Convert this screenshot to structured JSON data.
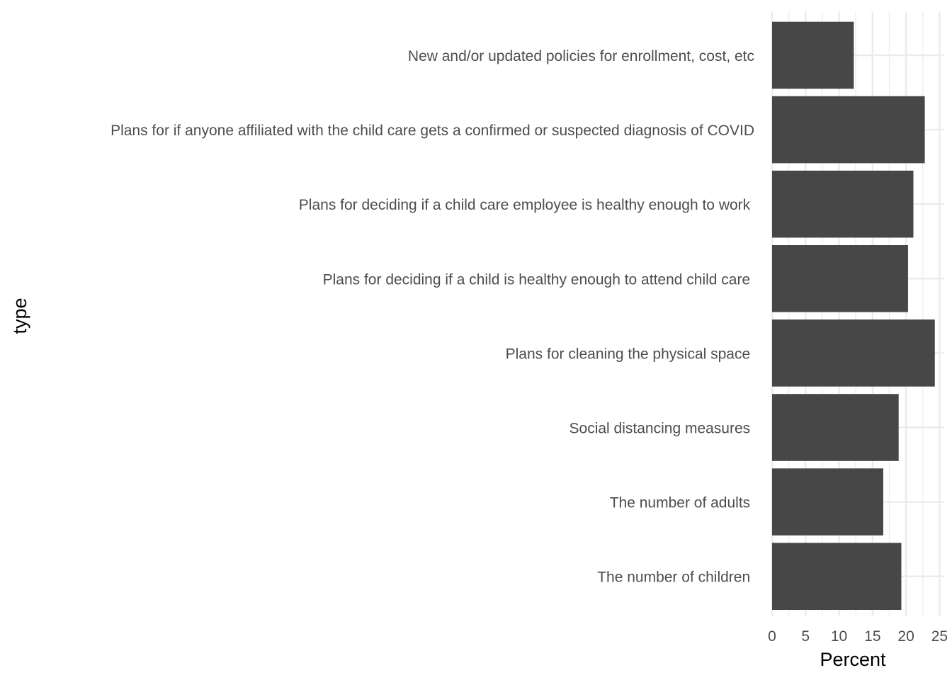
{
  "chart_data": {
    "type": "bar",
    "orientation": "horizontal",
    "categories": [
      "New and/or updated policies for enrollment, cost, etc",
      "Plans for if anyone affiliated with the child care gets a confirmed or suspected diagnosis of COVID",
      "Plans for deciding if a child care employee is healthy enough to work ",
      "Plans for deciding if a child is healthy enough to attend child care ",
      "Plans for cleaning the physical space ",
      "Social distancing measures ",
      "The number of adults ",
      "The number of children "
    ],
    "values": [
      12.2,
      22.8,
      21.1,
      20.3,
      24.3,
      18.9,
      16.6,
      19.3
    ],
    "xlabel": "Percent",
    "ylabel": "type",
    "xlim": [
      0,
      25.7
    ],
    "xticks": [
      "0",
      "5",
      "10",
      "15",
      "20",
      "25"
    ],
    "grid": true,
    "legend": "none",
    "bar_color": "#474747",
    "grid_color": "#ebebeb"
  }
}
